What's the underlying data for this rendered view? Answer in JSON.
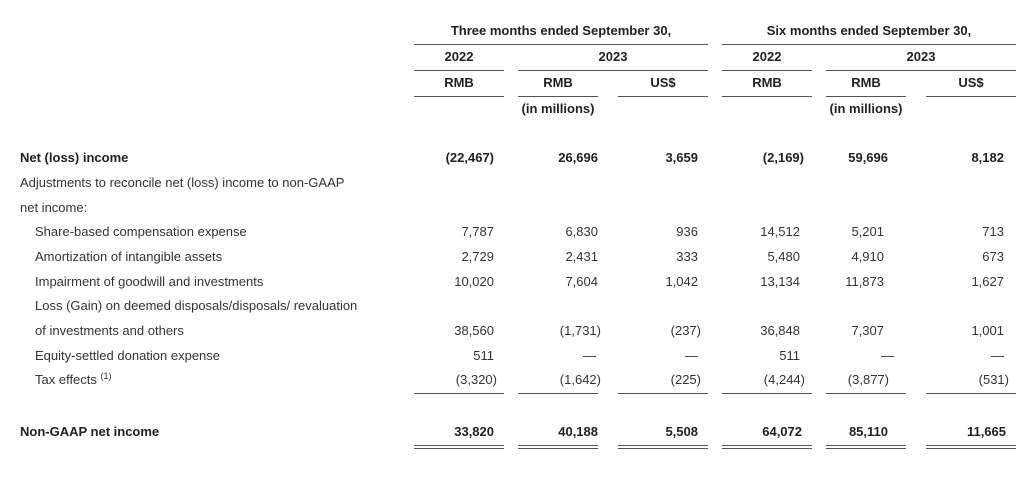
{
  "header": {
    "group1_title": "Three months ended September 30,",
    "group2_title": "Six months ended September 30,",
    "year_2022": "2022",
    "year_2023": "2023",
    "cur_rmb": "RMB",
    "cur_usd": "US$",
    "in_millions": "(in millions)"
  },
  "rows": {
    "net_income": {
      "label": "Net (loss) income",
      "values": [
        "(22,467)",
        "26,696",
        "3,659",
        "(2,169)",
        "59,696",
        "8,182"
      ]
    },
    "adjust_line1": "Adjustments to reconcile net (loss) income to non-GAAP",
    "adjust_line2": "net income:",
    "sbc": {
      "label": "Share-based compensation expense",
      "values": [
        "7,787",
        "6,830",
        "936",
        "14,512",
        "5,201",
        "713"
      ]
    },
    "amort": {
      "label": "Amortization of intangible assets",
      "values": [
        "2,729",
        "2,431",
        "333",
        "5,480",
        "4,910",
        "673"
      ]
    },
    "impair": {
      "label": "Impairment of goodwill and investments",
      "values": [
        "10,020",
        "7,604",
        "1,042",
        "13,134",
        "11,873",
        "1,627"
      ]
    },
    "loss_line1": "Loss (Gain) on deemed disposals/disposals/ revaluation",
    "loss": {
      "label": "of investments and others",
      "values": [
        "38,560",
        "(1,731)",
        "(237)",
        "36,848",
        "7,307",
        "1,001"
      ]
    },
    "donation": {
      "label": "Equity-settled donation expense",
      "values": [
        "511",
        "—",
        "—",
        "511",
        "—",
        "—"
      ]
    },
    "tax": {
      "label": "Tax effects",
      "footnote": "(1)",
      "values": [
        "(3,320)",
        "(1,642)",
        "(225)",
        "(4,244)",
        "(3,877)",
        "(531)"
      ]
    },
    "non_gaap": {
      "label": "Non-GAAP net income",
      "values": [
        "33,820",
        "40,188",
        "5,508",
        "64,072",
        "85,110",
        "11,665"
      ]
    }
  }
}
